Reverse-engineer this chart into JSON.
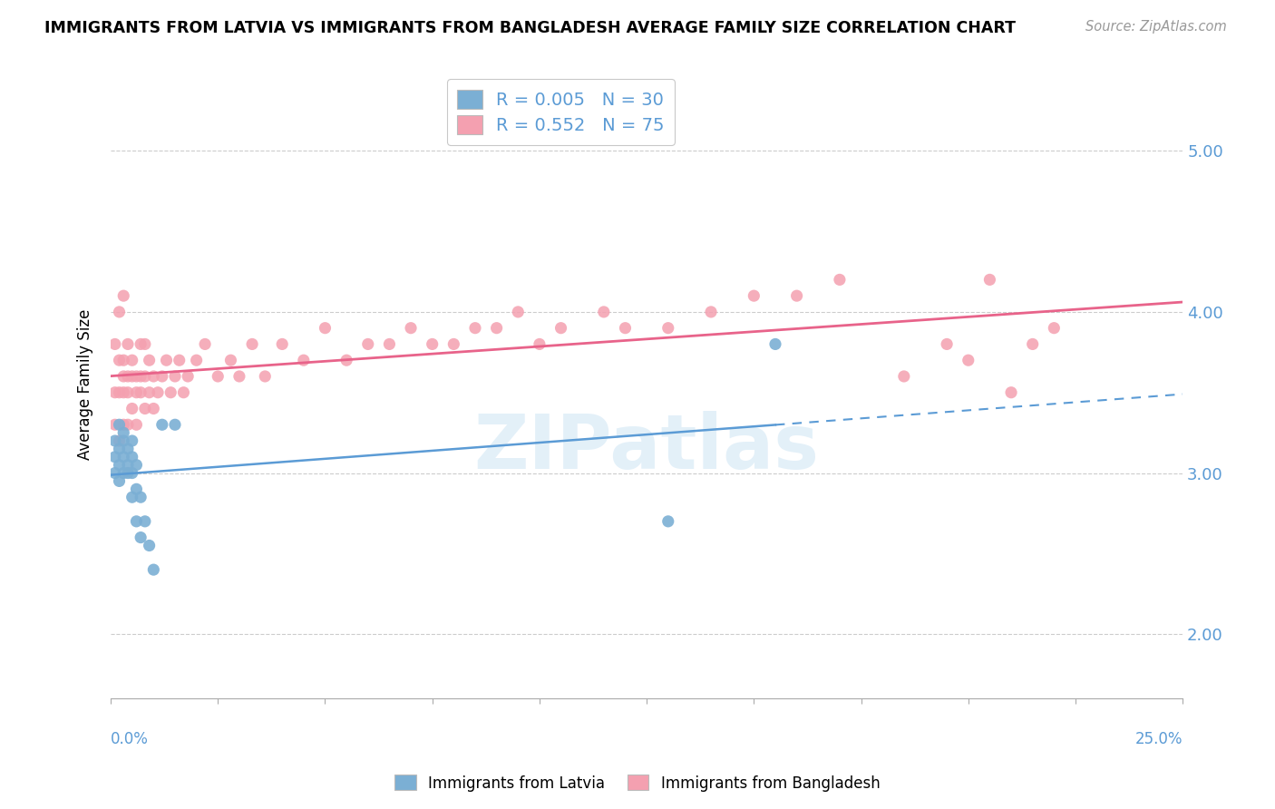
{
  "title": "IMMIGRANTS FROM LATVIA VS IMMIGRANTS FROM BANGLADESH AVERAGE FAMILY SIZE CORRELATION CHART",
  "source": "Source: ZipAtlas.com",
  "ylabel": "Average Family Size",
  "y_ticks": [
    2.0,
    3.0,
    4.0,
    5.0
  ],
  "xlim": [
    0.0,
    0.25
  ],
  "ylim": [
    1.6,
    5.5
  ],
  "legend_r1": "0.005",
  "legend_n1": "30",
  "legend_r2": "0.552",
  "legend_n2": "75",
  "color_latvia": "#7bafd4",
  "color_bangladesh": "#f4a0b0",
  "color_latvia_line": "#5b9bd5",
  "color_bangladesh_line": "#e8638a",
  "latvia_x": [
    0.001,
    0.001,
    0.001,
    0.002,
    0.002,
    0.002,
    0.002,
    0.003,
    0.003,
    0.003,
    0.003,
    0.004,
    0.004,
    0.004,
    0.005,
    0.005,
    0.005,
    0.005,
    0.006,
    0.006,
    0.006,
    0.007,
    0.007,
    0.008,
    0.009,
    0.01,
    0.012,
    0.015,
    0.13,
    0.155
  ],
  "latvia_y": [
    3.1,
    3.2,
    3.0,
    3.3,
    3.15,
    3.05,
    2.95,
    3.2,
    3.1,
    3.0,
    3.25,
    3.15,
    3.0,
    3.05,
    3.1,
    3.2,
    2.85,
    3.0,
    3.05,
    2.7,
    2.9,
    2.6,
    2.85,
    2.7,
    2.55,
    2.4,
    3.3,
    3.3,
    2.7,
    3.8
  ],
  "bangladesh_x": [
    0.001,
    0.001,
    0.001,
    0.002,
    0.002,
    0.002,
    0.002,
    0.003,
    0.003,
    0.003,
    0.003,
    0.003,
    0.004,
    0.004,
    0.004,
    0.004,
    0.005,
    0.005,
    0.005,
    0.006,
    0.006,
    0.006,
    0.007,
    0.007,
    0.007,
    0.008,
    0.008,
    0.008,
    0.009,
    0.009,
    0.01,
    0.01,
    0.011,
    0.012,
    0.013,
    0.014,
    0.015,
    0.016,
    0.017,
    0.018,
    0.02,
    0.022,
    0.025,
    0.028,
    0.03,
    0.033,
    0.036,
    0.04,
    0.045,
    0.05,
    0.055,
    0.06,
    0.065,
    0.07,
    0.075,
    0.08,
    0.085,
    0.09,
    0.095,
    0.1,
    0.105,
    0.115,
    0.12,
    0.13,
    0.14,
    0.15,
    0.16,
    0.17,
    0.185,
    0.195,
    0.2,
    0.205,
    0.21,
    0.215,
    0.22
  ],
  "bangladesh_y": [
    3.3,
    3.5,
    3.8,
    3.2,
    3.5,
    3.7,
    4.0,
    3.3,
    3.5,
    3.6,
    3.7,
    4.1,
    3.3,
    3.5,
    3.6,
    3.8,
    3.4,
    3.6,
    3.7,
    3.3,
    3.5,
    3.6,
    3.5,
    3.6,
    3.8,
    3.4,
    3.6,
    3.8,
    3.5,
    3.7,
    3.4,
    3.6,
    3.5,
    3.6,
    3.7,
    3.5,
    3.6,
    3.7,
    3.5,
    3.6,
    3.7,
    3.8,
    3.6,
    3.7,
    3.6,
    3.8,
    3.6,
    3.8,
    3.7,
    3.9,
    3.7,
    3.8,
    3.8,
    3.9,
    3.8,
    3.8,
    3.9,
    3.9,
    4.0,
    3.8,
    3.9,
    4.0,
    3.9,
    3.9,
    4.0,
    4.1,
    4.1,
    4.2,
    3.6,
    3.8,
    3.7,
    4.2,
    3.5,
    3.8,
    3.9
  ]
}
